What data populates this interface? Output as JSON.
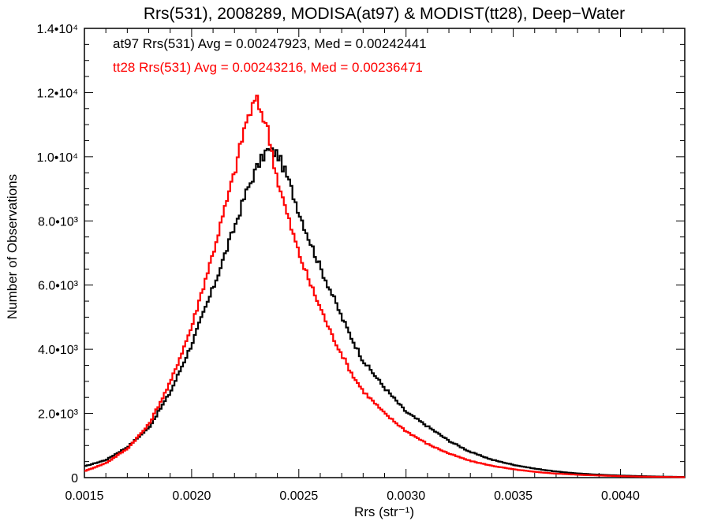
{
  "chart_data": {
    "type": "line",
    "title": "Rrs(531), 2008289, MODISA(at97) & MODIST(tt28), Deep−Water",
    "xlabel": "Rrs (str⁻¹)",
    "ylabel": "Number of Observations",
    "xlim": [
      0.0015,
      0.0043
    ],
    "ylim": [
      0,
      14000
    ],
    "x_ticks": [
      "0.0015",
      "0.0020",
      "0.0025",
      "0.0030",
      "0.0035",
      "0.0040"
    ],
    "y_ticks": [
      "0",
      "2.0•10³",
      "4.0•10³",
      "6.0•10³",
      "8.0•10³",
      "1.0•10⁴",
      "1.2•10⁴",
      "1.4•10⁴"
    ],
    "annotations": [
      "at97 Rrs(531) Avg = 0.00247923, Med = 0.00242441",
      "tt28 Rrs(531) Avg = 0.00243216, Med = 0.00236471"
    ],
    "grid": false,
    "series": [
      {
        "color": "#000000",
        "x": [
          0.0015,
          0.0016,
          0.0017,
          0.0018,
          0.0019,
          0.002,
          0.0021,
          0.0022,
          0.00225,
          0.0023,
          0.00235,
          0.0024,
          0.00245,
          0.0025,
          0.00255,
          0.0026,
          0.00265,
          0.0027,
          0.00275,
          0.0028,
          0.0029,
          0.003,
          0.0031,
          0.0032,
          0.0033,
          0.0034,
          0.0035,
          0.0036,
          0.0037,
          0.0038,
          0.0039,
          0.004,
          0.0041,
          0.0042,
          0.0043
        ],
        "y": [
          350,
          550,
          950,
          1550,
          2650,
          4150,
          5900,
          7800,
          8800,
          9600,
          10200,
          10100,
          9300,
          8300,
          7400,
          6550,
          5800,
          5000,
          4300,
          3650,
          2800,
          2050,
          1600,
          1150,
          800,
          560,
          400,
          280,
          190,
          130,
          90,
          65,
          45,
          30,
          20
        ]
      },
      {
        "color": "#ff0000",
        "x": [
          0.0015,
          0.0016,
          0.0017,
          0.0018,
          0.0019,
          0.002,
          0.0021,
          0.0022,
          0.00225,
          0.0023,
          0.00235,
          0.0024,
          0.00245,
          0.0025,
          0.00255,
          0.0026,
          0.00265,
          0.0027,
          0.00275,
          0.0028,
          0.0029,
          0.003,
          0.0031,
          0.0032,
          0.0033,
          0.0034,
          0.0035,
          0.0036,
          0.0037,
          0.0038,
          0.0039,
          0.004,
          0.0041,
          0.0042,
          0.0043
        ],
        "y": [
          200,
          450,
          900,
          1650,
          2950,
          4700,
          7000,
          9500,
          11000,
          11800,
          11000,
          9300,
          8100,
          7000,
          6100,
          5300,
          4500,
          3850,
          3200,
          2700,
          2000,
          1450,
          1050,
          750,
          520,
          370,
          260,
          180,
          125,
          90,
          65,
          45,
          30,
          22,
          15
        ]
      }
    ]
  }
}
